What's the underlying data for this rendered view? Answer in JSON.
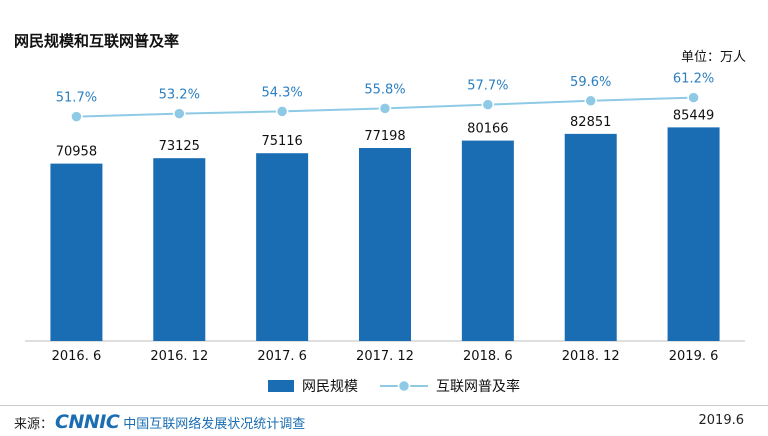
{
  "header": {
    "title": "网民规模和互联网普及率",
    "unit": "单位：万人"
  },
  "chart_data": {
    "type": "bar",
    "title": "网民规模和互联网普及率",
    "categories": [
      "2016. 6",
      "2016. 12",
      "2017. 6",
      "2017. 12",
      "2018. 6",
      "2018. 12",
      "2019. 6"
    ],
    "series": [
      {
        "name": "网民规模",
        "type": "bar",
        "values": [
          70958,
          73125,
          75116,
          77198,
          80166,
          82851,
          85449
        ],
        "color": "#1a6db3"
      },
      {
        "name": "互联网普及率",
        "type": "line",
        "values": [
          51.7,
          53.2,
          54.3,
          55.8,
          57.7,
          59.6,
          61.2
        ],
        "unit": "%",
        "color": "#8ecae6"
      }
    ],
    "ylim": [
      0,
      100000
    ],
    "line_ylim": [
      0,
      65
    ],
    "legend": "bottom-center"
  },
  "footer": {
    "source_label": "来源：",
    "logo_text": "CNNIC",
    "survey_name": "中国互联网络发展状况统计调查",
    "date": "2019.6"
  },
  "colors": {
    "bar": "#1a6db3",
    "line": "#8ecae6",
    "line_label": "#2b7fc1"
  }
}
